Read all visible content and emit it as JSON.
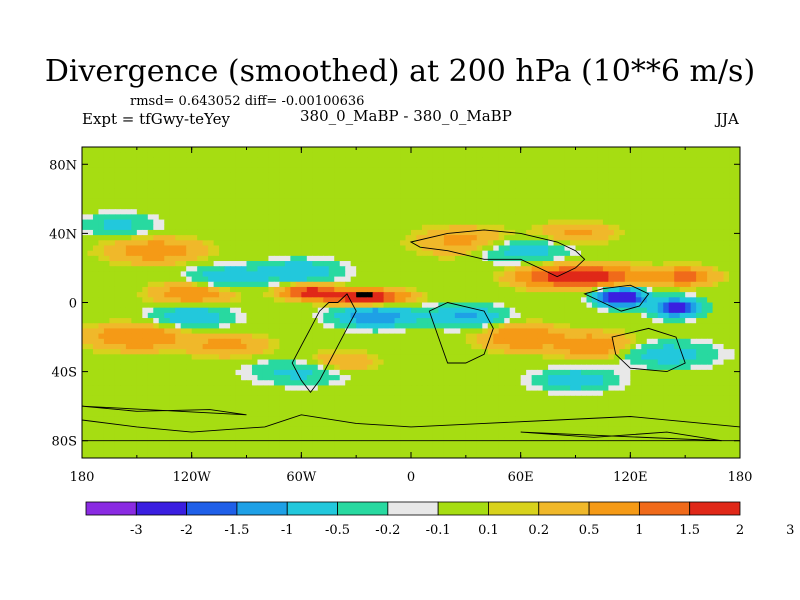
{
  "header": {
    "title": "Divergence (smoothed) at 200 hPa (10**6 m/s)",
    "stats": "rmsd= 0.643052 diff= -0.00100636",
    "expt": "Expt = tfGwy-teYey",
    "center_label": "380_0_MaBP - 380_0_MaBP",
    "season": "JJA"
  },
  "chart_data": {
    "type": "heatmap",
    "title": "Divergence (smoothed) at 200 hPa (10**6 m/s)",
    "xlabel": "",
    "ylabel": "",
    "xlim": [
      -180,
      180
    ],
    "ylim": [
      -90,
      90
    ],
    "x_ticks": [
      {
        "value": -180,
        "label": "180"
      },
      {
        "value": -120,
        "label": "120W"
      },
      {
        "value": -60,
        "label": "60W"
      },
      {
        "value": 0,
        "label": "0"
      },
      {
        "value": 60,
        "label": "60E"
      },
      {
        "value": 120,
        "label": "120E"
      },
      {
        "value": 180,
        "label": "180"
      }
    ],
    "y_ticks": [
      {
        "value": 80,
        "label": "80N"
      },
      {
        "value": 40,
        "label": "40N"
      },
      {
        "value": 0,
        "label": "0"
      },
      {
        "value": -40,
        "label": "40S"
      },
      {
        "value": -80,
        "label": "80S"
      }
    ],
    "colorbar": {
      "colors": [
        "#8a2be2",
        "#3a1ee0",
        "#1f5fe8",
        "#1ea0e6",
        "#22c8dc",
        "#28d9a0",
        "#e8e8e8",
        "#a6dd12",
        "#d8d21c",
        "#f0b82a",
        "#f59a16",
        "#f06a1a",
        "#e02818"
      ],
      "labels": [
        "-3",
        "-2",
        "-1.5",
        "-1",
        "-0.5",
        "-0.2",
        "-0.1",
        "0.1",
        "0.2",
        "0.5",
        "1",
        "1.5",
        "2",
        "3"
      ],
      "levels": [
        -3,
        -2,
        -1.5,
        -1,
        -0.5,
        -0.2,
        -0.1,
        0.1,
        0.2,
        0.5,
        1,
        1.5,
        2,
        3
      ]
    },
    "field_features": [
      {
        "lon": -25,
        "lat": 3,
        "value": 2.4,
        "lon_width": 20,
        "lat_width": 4
      },
      {
        "lon": -55,
        "lat": 6,
        "value": 1.8,
        "lon_width": 15,
        "lat_width": 4
      },
      {
        "lon": 115,
        "lat": 3,
        "value": -3.0,
        "lon_width": 12,
        "lat_width": 5
      },
      {
        "lon": 145,
        "lat": -3,
        "value": -2.4,
        "lon_width": 12,
        "lat_width": 5
      },
      {
        "lon": 100,
        "lat": 15,
        "value": 1.7,
        "lon_width": 25,
        "lat_width": 6
      },
      {
        "lon": 150,
        "lat": 15,
        "value": 1.2,
        "lon_width": 15,
        "lat_width": 5
      },
      {
        "lon": 75,
        "lat": 15,
        "value": 1.0,
        "lon_width": 20,
        "lat_width": 6
      },
      {
        "lon": -140,
        "lat": 30,
        "value": 0.8,
        "lon_width": 25,
        "lat_width": 7
      },
      {
        "lon": -120,
        "lat": 5,
        "value": 0.9,
        "lon_width": 20,
        "lat_width": 6
      },
      {
        "lon": -150,
        "lat": -20,
        "value": 1.0,
        "lon_width": 25,
        "lat_width": 7
      },
      {
        "lon": -100,
        "lat": -25,
        "value": 0.7,
        "lon_width": 20,
        "lat_width": 6
      },
      {
        "lon": -40,
        "lat": -35,
        "value": 0.6,
        "lon_width": 20,
        "lat_width": 6
      },
      {
        "lon": 60,
        "lat": -20,
        "value": 1.0,
        "lon_width": 20,
        "lat_width": 7
      },
      {
        "lon": 100,
        "lat": -25,
        "value": 0.9,
        "lon_width": 20,
        "lat_width": 7
      },
      {
        "lon": 30,
        "lat": 35,
        "value": 0.7,
        "lon_width": 25,
        "lat_width": 8
      },
      {
        "lon": 90,
        "lat": 40,
        "value": 0.6,
        "lon_width": 20,
        "lat_width": 6
      },
      {
        "lon": -60,
        "lat": 18,
        "value": -1.0,
        "lon_width": 20,
        "lat_width": 6
      },
      {
        "lon": -20,
        "lat": -8,
        "value": -1.5,
        "lon_width": 20,
        "lat_width": 6
      },
      {
        "lon": 30,
        "lat": -8,
        "value": -1.1,
        "lon_width": 20,
        "lat_width": 6
      },
      {
        "lon": 60,
        "lat": 30,
        "value": -0.8,
        "lon_width": 25,
        "lat_width": 7
      },
      {
        "lon": -100,
        "lat": 15,
        "value": -0.9,
        "lon_width": 20,
        "lat_width": 6
      },
      {
        "lon": -120,
        "lat": -8,
        "value": -1.0,
        "lon_width": 20,
        "lat_width": 6
      },
      {
        "lon": -60,
        "lat": -40,
        "value": -0.7,
        "lon_width": 25,
        "lat_width": 7
      },
      {
        "lon": 140,
        "lat": -30,
        "value": -0.8,
        "lon_width": 25,
        "lat_width": 7
      },
      {
        "lon": 90,
        "lat": -45,
        "value": -0.9,
        "lon_width": 20,
        "lat_width": 6
      },
      {
        "lon": -160,
        "lat": 45,
        "value": -0.6,
        "lon_width": 20,
        "lat_width": 6
      }
    ]
  }
}
